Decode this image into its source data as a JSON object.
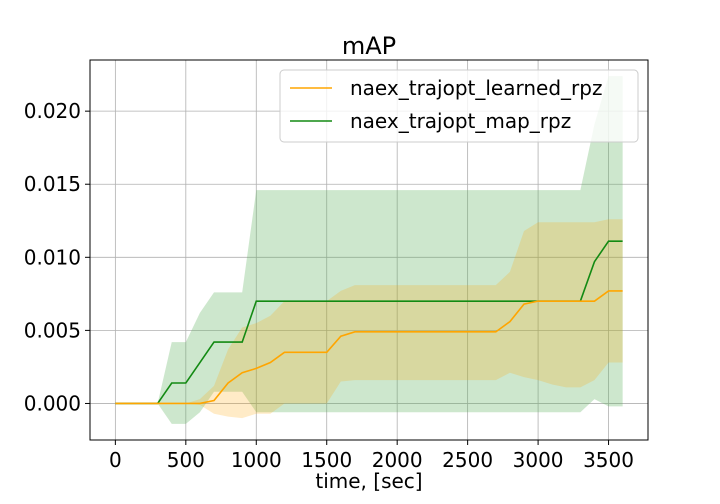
{
  "chart_data": {
    "type": "line",
    "title": "mAP",
    "xlabel": "time, [sec]",
    "ylabel": "",
    "xlim": [
      -180,
      3780
    ],
    "ylim": [
      -0.0025,
      0.0235
    ],
    "xticks": [
      0,
      500,
      1000,
      1500,
      2000,
      2500,
      3000,
      3500
    ],
    "xtick_labels": [
      "0",
      "500",
      "1000",
      "1500",
      "2000",
      "2500",
      "3000",
      "3500"
    ],
    "yticks": [
      0.0,
      0.005,
      0.01,
      0.015,
      0.02
    ],
    "ytick_labels": [
      "0.000",
      "0.005",
      "0.010",
      "0.015",
      "0.020"
    ],
    "grid": true,
    "legend_position": "top-right",
    "x": [
      0,
      100,
      200,
      300,
      400,
      500,
      600,
      700,
      800,
      900,
      1000,
      1100,
      1200,
      1300,
      1400,
      1500,
      1600,
      1700,
      1800,
      1900,
      2000,
      2100,
      2200,
      2300,
      2400,
      2500,
      2600,
      2700,
      2800,
      2900,
      3000,
      3100,
      3200,
      3300,
      3400,
      3500,
      3600
    ],
    "series": [
      {
        "name": "naex_trajopt_learned_rpz",
        "color": "#ffa500",
        "band_color": "#ffa500",
        "values": [
          0,
          0,
          0,
          0,
          0,
          0,
          0,
          0.0002,
          0.0014,
          0.0021,
          0.0024,
          0.0028,
          0.0035,
          0.0035,
          0.0035,
          0.0035,
          0.0046,
          0.0049,
          0.0049,
          0.0049,
          0.0049,
          0.0049,
          0.0049,
          0.0049,
          0.0049,
          0.0049,
          0.0049,
          0.0049,
          0.0056,
          0.0068,
          0.007,
          0.007,
          0.007,
          0.007,
          0.007,
          0.0077,
          0.0077
        ],
        "lower": [
          0,
          0,
          0,
          0,
          0,
          0,
          -0.0001,
          -0.0007,
          -0.0009,
          -0.001,
          -0.0007,
          -0.0007,
          0,
          0,
          0,
          0,
          0.0015,
          0.0016,
          0.0016,
          0.0016,
          0.0016,
          0.0016,
          0.0016,
          0.0016,
          0.0016,
          0.0016,
          0.0016,
          0.0016,
          0.0021,
          0.0018,
          0.0016,
          0.0013,
          0.0011,
          0.0011,
          0.0016,
          0.0028,
          0.0028
        ],
        "upper": [
          0,
          0,
          0,
          0,
          0,
          0,
          0.0003,
          0.0012,
          0.0037,
          0.0052,
          0.0055,
          0.006,
          0.007,
          0.007,
          0.007,
          0.007,
          0.0077,
          0.0081,
          0.0081,
          0.0081,
          0.0081,
          0.0081,
          0.0081,
          0.0081,
          0.0081,
          0.0081,
          0.0081,
          0.0081,
          0.009,
          0.0118,
          0.0124,
          0.0124,
          0.0124,
          0.0124,
          0.0124,
          0.0126,
          0.0126
        ]
      },
      {
        "name": "naex_trajopt_map_rpz",
        "color": "#138a13",
        "band_color": "#5aae5a",
        "values": [
          0,
          0,
          0,
          0,
          0.0014,
          0.0014,
          0.0028,
          0.0042,
          0.0042,
          0.0042,
          0.007,
          0.007,
          0.007,
          0.007,
          0.007,
          0.007,
          0.007,
          0.007,
          0.007,
          0.007,
          0.007,
          0.007,
          0.007,
          0.007,
          0.007,
          0.007,
          0.007,
          0.007,
          0.007,
          0.007,
          0.007,
          0.007,
          0.007,
          0.007,
          0.0097,
          0.0111,
          0.0111
        ],
        "lower": [
          0,
          0,
          0,
          0,
          -0.0014,
          -0.0014,
          -0.0006,
          0.0008,
          0.0008,
          0.0008,
          -0.0006,
          -0.0006,
          -0.0006,
          -0.0006,
          -0.0006,
          -0.0006,
          -0.0006,
          -0.0006,
          -0.0006,
          -0.0006,
          -0.0006,
          -0.0006,
          -0.0006,
          -0.0006,
          -0.0006,
          -0.0006,
          -0.0006,
          -0.0006,
          -0.0006,
          -0.0006,
          -0.0006,
          -0.0006,
          -0.0006,
          -0.0006,
          0.0003,
          -0.0002,
          -0.0002
        ],
        "upper": [
          0,
          0,
          0,
          0,
          0.0042,
          0.0042,
          0.0062,
          0.0076,
          0.0076,
          0.0076,
          0.0146,
          0.0146,
          0.0146,
          0.0146,
          0.0146,
          0.0146,
          0.0146,
          0.0146,
          0.0146,
          0.0146,
          0.0146,
          0.0146,
          0.0146,
          0.0146,
          0.0146,
          0.0146,
          0.0146,
          0.0146,
          0.0146,
          0.0146,
          0.0146,
          0.0146,
          0.0146,
          0.0146,
          0.0191,
          0.0224,
          0.0224
        ]
      }
    ]
  }
}
